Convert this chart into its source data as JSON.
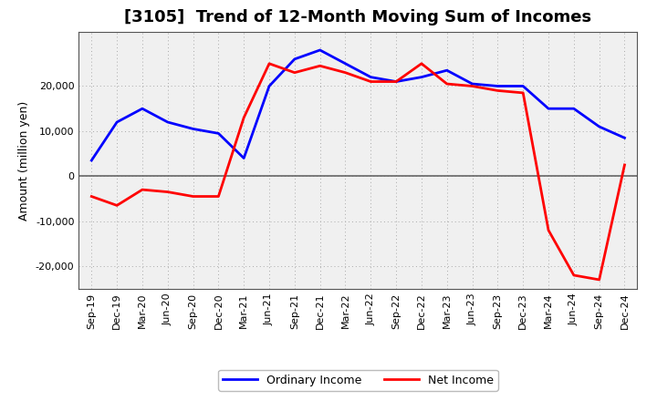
{
  "title": "[3105]  Trend of 12-Month Moving Sum of Incomes",
  "ylabel": "Amount (million yen)",
  "background_color": "#ffffff",
  "plot_bg_color": "#f0f0f0",
  "grid_color": "#aaaaaa",
  "title_fontsize": 13,
  "labels": [
    "Sep-19",
    "Dec-19",
    "Mar-20",
    "Jun-20",
    "Sep-20",
    "Dec-20",
    "Mar-21",
    "Jun-21",
    "Sep-21",
    "Dec-21",
    "Mar-22",
    "Jun-22",
    "Sep-22",
    "Dec-22",
    "Mar-23",
    "Jun-23",
    "Sep-23",
    "Dec-23",
    "Mar-24",
    "Jun-24",
    "Sep-24",
    "Dec-24"
  ],
  "ordinary_income": [
    3500,
    12000,
    15000,
    12000,
    10500,
    9500,
    4000,
    20000,
    26000,
    28000,
    25000,
    22000,
    21000,
    22000,
    23500,
    20500,
    20000,
    20000,
    15000,
    15000,
    11000,
    8500
  ],
  "net_income": [
    -4500,
    -6500,
    -3000,
    -3500,
    -4500,
    -4500,
    13000,
    25000,
    23000,
    24500,
    23000,
    21000,
    21000,
    25000,
    20500,
    20000,
    19000,
    18500,
    -12000,
    -22000,
    -23000,
    2500
  ],
  "ordinary_color": "#0000ff",
  "net_color": "#ff0000",
  "ylim": [
    -25000,
    32000
  ],
  "yticks": [
    -20000,
    -10000,
    0,
    10000,
    20000
  ],
  "line_width": 2.0
}
